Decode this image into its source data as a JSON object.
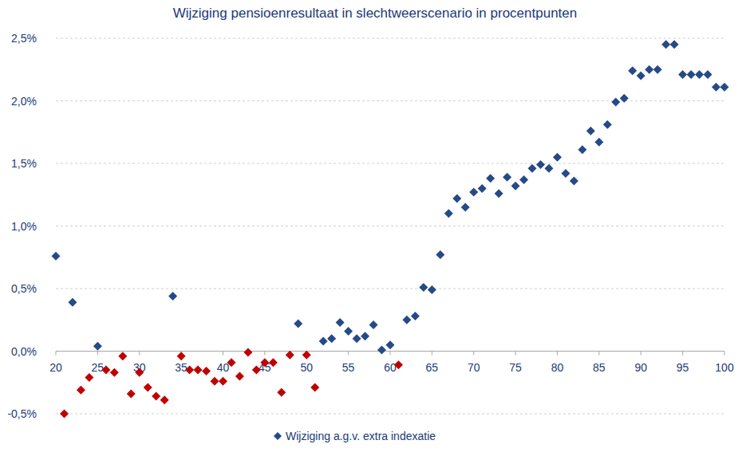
{
  "chart_data": {
    "type": "scatter",
    "title": "Wijziging pensioenresultaat in slechtweerscenario in procentpunten",
    "x": [
      20,
      21,
      22,
      23,
      24,
      25,
      26,
      27,
      28,
      29,
      30,
      31,
      32,
      33,
      34,
      35,
      36,
      37,
      38,
      39,
      40,
      41,
      42,
      43,
      44,
      45,
      46,
      47,
      48,
      49,
      50,
      51,
      52,
      53,
      54,
      55,
      56,
      57,
      58,
      59,
      60,
      61,
      62,
      63,
      64,
      65,
      66,
      67,
      68,
      69,
      70,
      71,
      72,
      73,
      74,
      75,
      76,
      77,
      78,
      79,
      80,
      81,
      82,
      83,
      84,
      85,
      86,
      87,
      88,
      89,
      90,
      91,
      92,
      93,
      94,
      95,
      96,
      97,
      98,
      99,
      100
    ],
    "series": [
      {
        "name": "Wijziging a.g.v. extra indexatie",
        "color": "#254a87",
        "marker": "diamond",
        "values": [
          0.76,
          -0.5,
          0.39,
          -0.31,
          -0.21,
          0.04,
          -0.15,
          -0.17,
          -0.04,
          -0.34,
          -0.17,
          -0.29,
          -0.36,
          -0.39,
          0.44,
          -0.04,
          -0.15,
          -0.15,
          -0.16,
          -0.24,
          -0.24,
          -0.09,
          -0.2,
          -0.01,
          -0.15,
          -0.09,
          -0.09,
          -0.33,
          -0.03,
          0.22,
          -0.03,
          -0.29,
          0.08,
          0.1,
          0.23,
          0.16,
          0.1,
          0.12,
          0.21,
          0.01,
          0.05,
          -0.11,
          0.25,
          0.28,
          0.51,
          0.49,
          0.77,
          1.1,
          1.22,
          1.15,
          1.27,
          1.3,
          1.38,
          1.26,
          1.39,
          1.32,
          1.37,
          1.46,
          1.49,
          1.46,
          1.55,
          1.42,
          1.36,
          1.61,
          1.76,
          1.67,
          1.81,
          1.99,
          2.02,
          2.24,
          2.2,
          2.25,
          2.25,
          2.45,
          2.45,
          2.21,
          2.21,
          2.21,
          2.21,
          2.11,
          2.11
        ],
        "colors": [
          "#254a87",
          "#c00000",
          "#254a87",
          "#c00000",
          "#c00000",
          "#254a87",
          "#c00000",
          "#c00000",
          "#c00000",
          "#c00000",
          "#c00000",
          "#c00000",
          "#c00000",
          "#c00000",
          "#254a87",
          "#c00000",
          "#c00000",
          "#c00000",
          "#c00000",
          "#c00000",
          "#c00000",
          "#c00000",
          "#c00000",
          "#c00000",
          "#c00000",
          "#c00000",
          "#c00000",
          "#c00000",
          "#c00000",
          "#254a87",
          "#c00000",
          "#c00000",
          "#254a87",
          "#254a87",
          "#254a87",
          "#254a87",
          "#254a87",
          "#254a87",
          "#254a87",
          "#254a87",
          "#254a87",
          "#c00000",
          "#254a87",
          "#254a87",
          "#254a87",
          "#254a87",
          "#254a87",
          "#254a87",
          "#254a87",
          "#254a87",
          "#254a87",
          "#254a87",
          "#254a87",
          "#254a87",
          "#254a87",
          "#254a87",
          "#254a87",
          "#254a87",
          "#254a87",
          "#254a87",
          "#254a87",
          "#254a87",
          "#254a87",
          "#254a87",
          "#254a87",
          "#254a87",
          "#254a87",
          "#254a87",
          "#254a87",
          "#254a87",
          "#254a87",
          "#254a87",
          "#254a87",
          "#254a87",
          "#254a87",
          "#254a87",
          "#254a87",
          "#254a87",
          "#254a87",
          "#254a87",
          "#254a87"
        ]
      }
    ],
    "xlim": [
      20,
      100
    ],
    "xticks": [
      20,
      25,
      30,
      35,
      40,
      45,
      50,
      55,
      60,
      65,
      70,
      75,
      80,
      85,
      90,
      95,
      100
    ],
    "ylim": [
      -0.5,
      2.5
    ],
    "yticks": [
      {
        "value": -0.5,
        "label": "-0,5%"
      },
      {
        "value": 0,
        "label": "0,0%"
      },
      {
        "value": 0.5,
        "label": "0,5%"
      },
      {
        "value": 1,
        "label": "1,0%"
      },
      {
        "value": 1.5,
        "label": "1,5%"
      },
      {
        "value": 2,
        "label": "2,0%"
      },
      {
        "value": 2.5,
        "label": "2,5%"
      }
    ],
    "grid": true,
    "legend": "bottom"
  }
}
